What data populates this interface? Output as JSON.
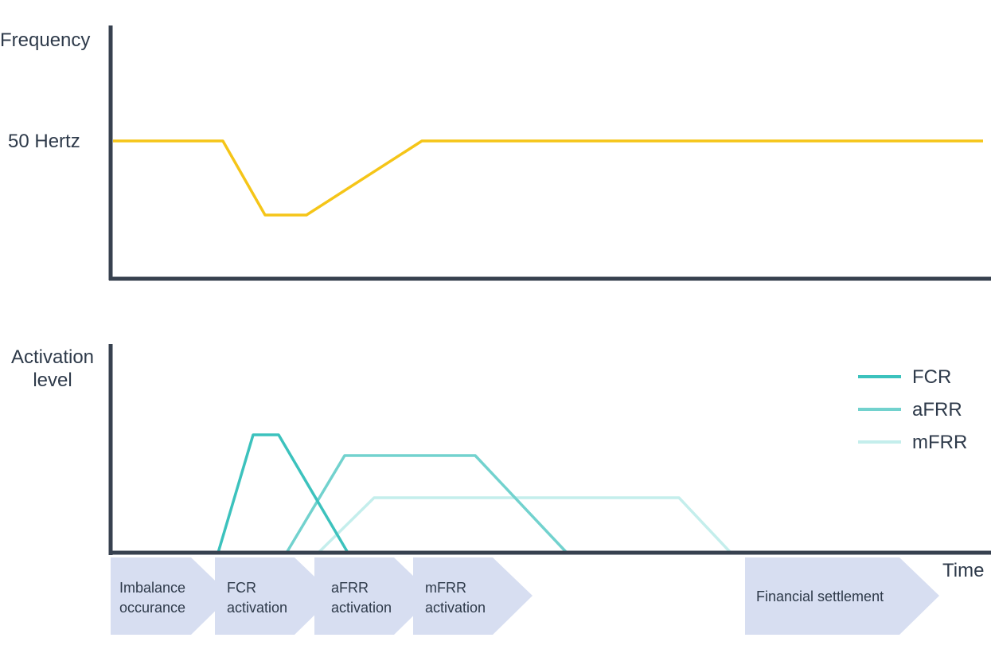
{
  "colors": {
    "axis": "#37414f",
    "frequency_line": "#f5c518",
    "fcr": "#3cc2bd",
    "afrr": "#72d2ce",
    "mfrr": "#c4eeec",
    "step_fill": "#d7def1",
    "text": "#2e3a4a"
  },
  "top_panel": {
    "y_label": "Frequency",
    "reference_label": "50 Hertz"
  },
  "bottom_panel": {
    "y_label_line1": "Activation",
    "y_label_line2": "level",
    "x_label": "Time"
  },
  "legend": {
    "items": [
      {
        "label": "FCR"
      },
      {
        "label": "aFRR"
      },
      {
        "label": "mFRR"
      }
    ]
  },
  "process_steps": [
    {
      "line1": "Imbalance",
      "line2": "occurance"
    },
    {
      "line1": "FCR",
      "line2": "activation"
    },
    {
      "line1": "aFRR",
      "line2": "activation"
    },
    {
      "line1": "mFRR",
      "line2": "activation"
    },
    {
      "line1": "Financial settlement",
      "line2": ""
    }
  ]
}
